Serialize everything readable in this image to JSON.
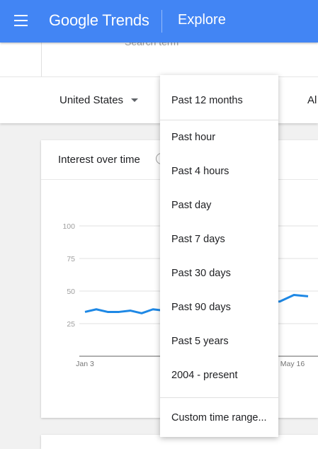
{
  "header": {
    "brand": "Google Trends",
    "page_title": "Explore",
    "menu_icon": "hamburger-menu-icon"
  },
  "search": {
    "term_label": "Search term"
  },
  "filters": {
    "geo": "United States",
    "category_partial": "Al"
  },
  "card": {
    "title": "Interest over time",
    "help_icon": "help-circle-icon"
  },
  "chart_data": {
    "type": "line",
    "title": "",
    "xlabel": "",
    "ylabel": "",
    "ylim": [
      0,
      100
    ],
    "yticks": [
      25,
      50,
      75,
      100
    ],
    "grid": true,
    "line_color": "#1e88e5",
    "x_tick_labels": [
      "Jan 3",
      "May 16"
    ],
    "series": [
      {
        "values_visible_left": [
          34,
          36,
          34,
          34,
          35,
          33,
          36,
          35
        ],
        "values_visible_right": [
          42,
          42,
          47,
          46
        ]
      }
    ]
  },
  "time_dropdown": {
    "selected": "Past 12 months",
    "options": [
      "Past hour",
      "Past 4 hours",
      "Past day",
      "Past 7 days",
      "Past 30 days",
      "Past 90 days",
      "Past 5 years",
      "2004 - present"
    ],
    "custom": "Custom time range..."
  }
}
